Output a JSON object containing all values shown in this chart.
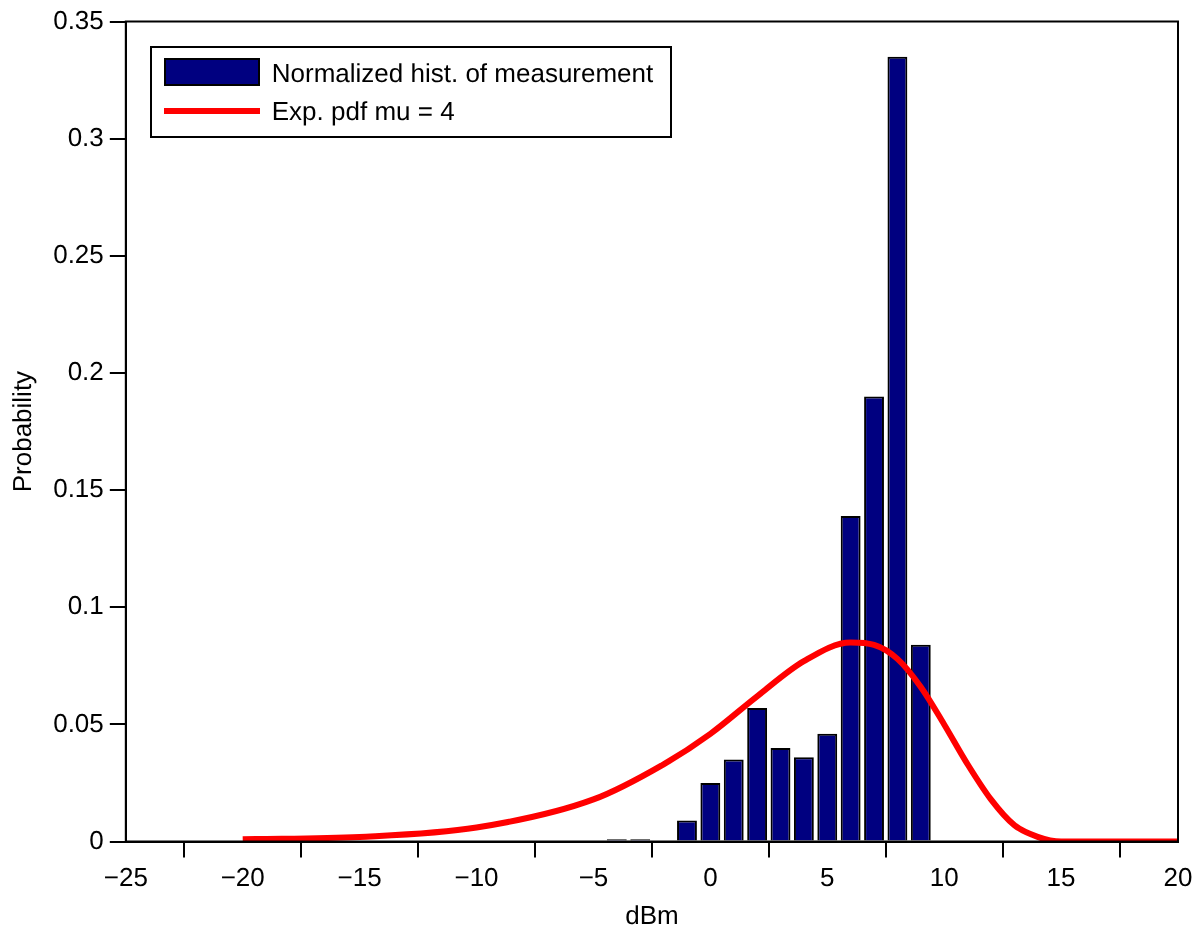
{
  "chart_data": {
    "type": "histogram",
    "xlabel": "dBm",
    "ylabel": "Probability",
    "bins": [
      -4.5,
      -3.5,
      -2.5,
      -1.5,
      -0.5,
      0.5,
      1.5,
      2.5,
      3.5,
      4.5,
      5.5,
      6.5,
      7.5,
      8.5,
      9.5
    ],
    "series": [
      {
        "name": "Normalized hist. of measurement",
        "color": "#000080",
        "values": [
          0.001,
          0.001,
          0,
          0.009,
          0.025,
          0.035,
          0.057,
          0.04,
          0.036,
          0.046,
          0.139,
          0.19,
          0.335,
          0.084
        ]
      },
      {
        "type": "line",
        "name": "Exp. pdf mu = 4",
        "color": "#ff0000",
        "x": [
          -20,
          -15,
          -10,
          -5,
          -2,
          0,
          2,
          4,
          6,
          7,
          8,
          9,
          10,
          11,
          12,
          13,
          14,
          15,
          16,
          20
        ],
        "values": [
          0.001,
          0.002,
          0.006,
          0.018,
          0.033,
          0.046,
          0.062,
          0.077,
          0.085,
          0.084,
          0.078,
          0.066,
          0.05,
          0.033,
          0.018,
          0.007,
          0.002,
          0,
          0,
          0
        ]
      }
    ],
    "xlim": [
      -25,
      20
    ],
    "xticks": [
      -25,
      -20,
      -15,
      -10,
      -5,
      0,
      5,
      10,
      15,
      20
    ],
    "ylim": [
      0,
      0.35
    ],
    "yticks": [
      0,
      0.05,
      0.1,
      0.15,
      0.2,
      0.25,
      0.3,
      0.35
    ],
    "legend": "top left",
    "grid": false
  }
}
